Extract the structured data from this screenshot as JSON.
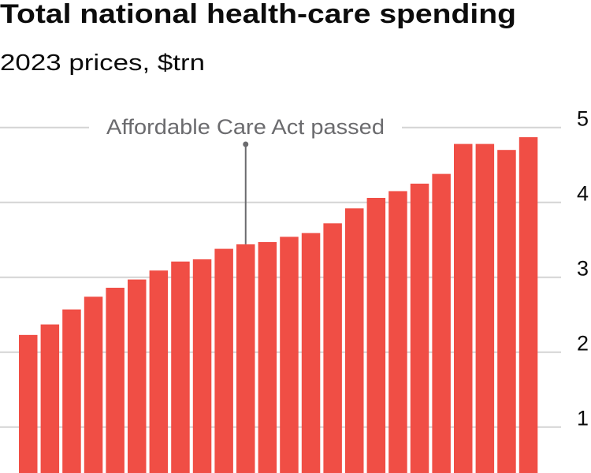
{
  "chart_data": {
    "type": "bar",
    "title": "Total national health-care spending",
    "subtitle": "2023 prices, $trn",
    "values": [
      2.23,
      2.37,
      2.57,
      2.74,
      2.86,
      2.97,
      3.09,
      3.21,
      3.24,
      3.38,
      3.44,
      3.47,
      3.54,
      3.59,
      3.72,
      3.92,
      4.06,
      4.15,
      4.25,
      4.38,
      4.78,
      4.78,
      4.7,
      4.87
    ],
    "yticks": [
      1,
      2,
      3,
      4,
      5
    ],
    "ytick_labels": [
      "1",
      "2",
      "3",
      "4",
      "5"
    ],
    "y_axis_position": "right",
    "grid": true,
    "bar_color": "#f04e45",
    "grid_color": "#d4d4d4",
    "annotation": {
      "text": "Affordable Care Act passed",
      "bar_index": 10,
      "color": "#6b6b6e"
    }
  }
}
